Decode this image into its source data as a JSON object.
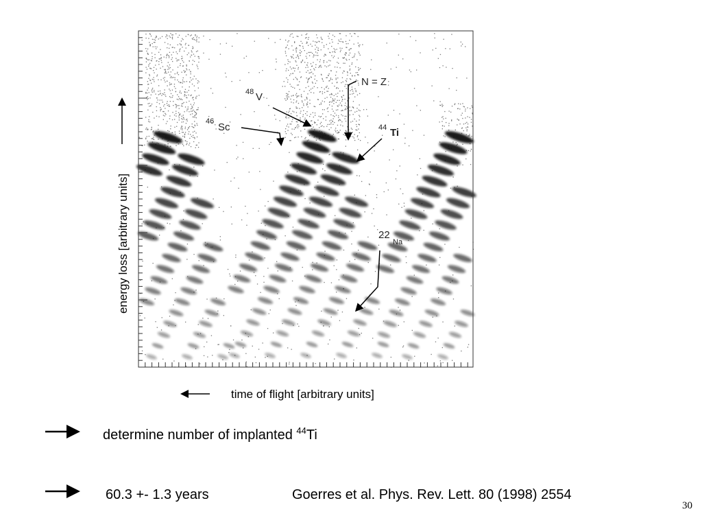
{
  "figure": {
    "y_axis_label": "energy loss [arbitrary units]",
    "x_axis_label": "time of flight [arbitrary units]",
    "annotations": [
      {
        "mass": "48",
        "element": "V"
      },
      {
        "mass": "46",
        "element": "Sc"
      },
      {
        "text": "N = Z"
      },
      {
        "mass": "44",
        "element": "Ti"
      },
      {
        "mass": "22",
        "element": "Na"
      }
    ]
  },
  "bullets": [
    {
      "text": "determine number of implanted ",
      "mass": "44",
      "element": "Ti"
    },
    {
      "text": "60.3 +- 1.3 years",
      "reference": "Goerres et al. Phys. Rev. Lett. 80 (1998) 2554"
    }
  ],
  "page_number": "30"
}
